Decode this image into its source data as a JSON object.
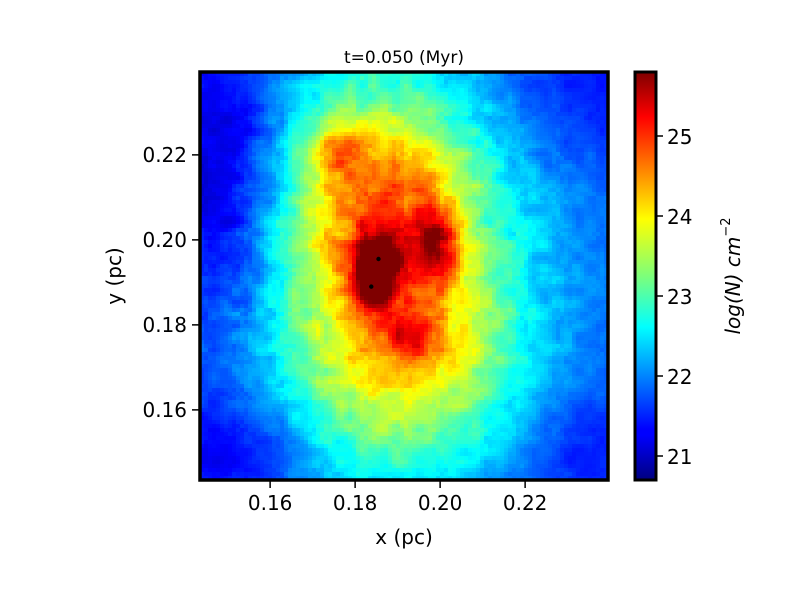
{
  "chart_data": {
    "type": "heatmap",
    "title": "t=0.050 (Myr)",
    "xlabel": "x (pc)",
    "ylabel": "y (pc)",
    "xlim": [
      0.1435,
      0.2395
    ],
    "ylim": [
      0.1435,
      0.2395
    ],
    "xticks": [
      0.16,
      0.18,
      0.2,
      0.22
    ],
    "yticks": [
      0.16,
      0.18,
      0.2,
      0.22
    ],
    "xtick_labels": [
      "0.16",
      "0.18",
      "0.20",
      "0.22"
    ],
    "ytick_labels": [
      "0.16",
      "0.18",
      "0.20",
      "0.22"
    ],
    "grid": false,
    "colormap": "jet",
    "colorbar": {
      "label": "log(N) cm^-2",
      "label_main": "log(N) cm",
      "label_sup": "−2",
      "range": [
        20.7,
        25.8
      ],
      "ticks": [
        21,
        22,
        23,
        24,
        25
      ],
      "tick_labels": [
        "21",
        "22",
        "23",
        "24",
        "25"
      ]
    },
    "background_level": 21.8,
    "features": [
      {
        "x": 0.185,
        "y": 0.192,
        "sx": 0.018,
        "sy": 0.035,
        "amp": 1.3
      },
      {
        "x": 0.191,
        "y": 0.196,
        "sx": 0.022,
        "sy": 0.03,
        "amp": 0.9
      },
      {
        "x": 0.18,
        "y": 0.21,
        "sx": 0.012,
        "sy": 0.015,
        "amp": 0.8
      },
      {
        "x": 0.176,
        "y": 0.221,
        "sx": 0.004,
        "sy": 0.004,
        "amp": 1.0
      },
      {
        "x": 0.199,
        "y": 0.199,
        "sx": 0.004,
        "sy": 0.006,
        "amp": 1.7
      },
      {
        "x": 0.186,
        "y": 0.195,
        "sx": 0.004,
        "sy": 0.005,
        "amp": 1.8
      },
      {
        "x": 0.184,
        "y": 0.19,
        "sx": 0.003,
        "sy": 0.005,
        "amp": 1.6
      },
      {
        "x": 0.193,
        "y": 0.177,
        "sx": 0.004,
        "sy": 0.004,
        "amp": 1.2
      },
      {
        "x": 0.202,
        "y": 0.176,
        "sx": 0.015,
        "sy": 0.018,
        "amp": 0.6
      },
      {
        "x": 0.197,
        "y": 0.216,
        "sx": 0.01,
        "sy": 0.008,
        "amp": 0.5
      },
      {
        "x": 0.188,
        "y": 0.165,
        "sx": 0.02,
        "sy": 0.012,
        "amp": 0.3
      },
      {
        "x": 0.15,
        "y": 0.215,
        "sx": 0.01,
        "sy": 0.025,
        "amp": -0.9
      },
      {
        "x": 0.15,
        "y": 0.15,
        "sx": 0.015,
        "sy": 0.01,
        "amp": -0.6
      },
      {
        "x": 0.235,
        "y": 0.15,
        "sx": 0.012,
        "sy": 0.01,
        "amp": -0.4
      },
      {
        "x": 0.235,
        "y": 0.235,
        "sx": 0.015,
        "sy": 0.012,
        "amp": -0.4
      }
    ],
    "sinks": [
      {
        "x": 0.1855,
        "y": 0.1955
      },
      {
        "x": 0.1838,
        "y": 0.189
      }
    ]
  }
}
